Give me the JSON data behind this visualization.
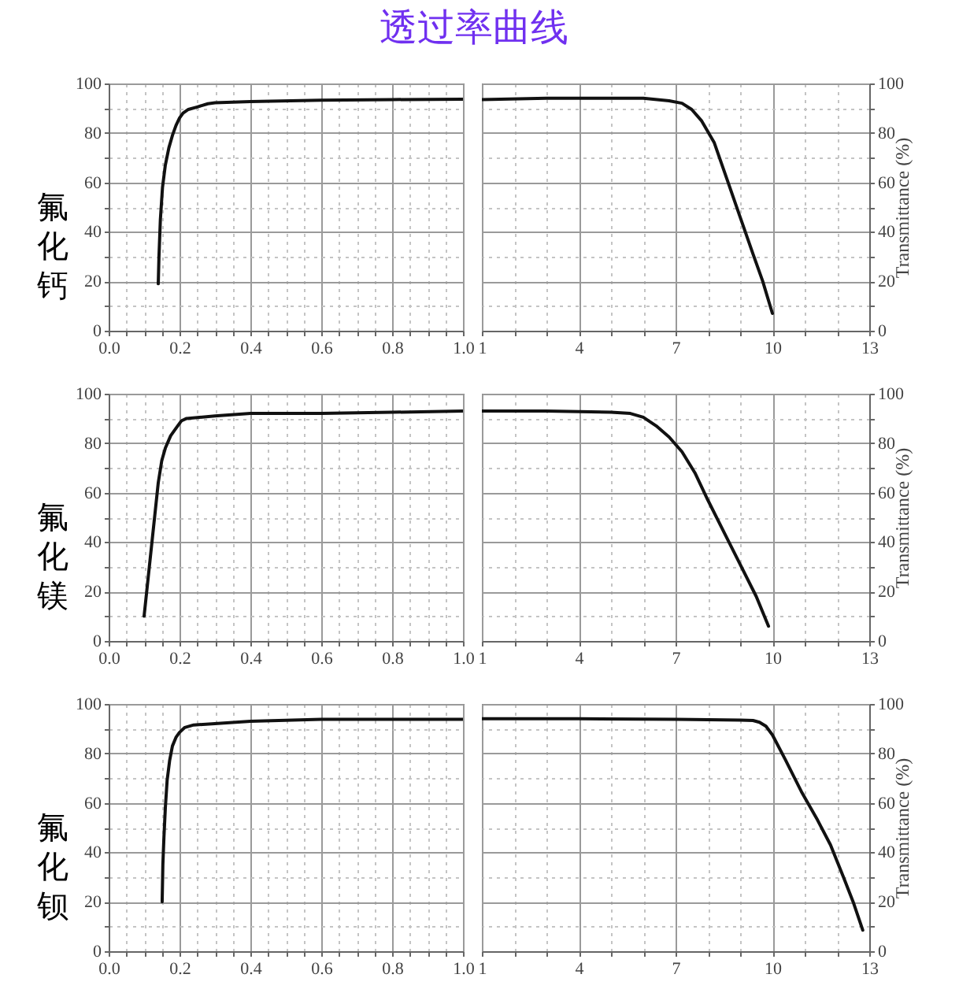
{
  "chart_data": [
    {
      "type": "line",
      "title": "透过率曲线",
      "ylabel": "氟化钙",
      "grid": true,
      "xlim": [
        0,
        1
      ],
      "xticks": [
        {
          "value": 0,
          "label": "0.0"
        },
        {
          "value": 0.05,
          "label": null
        },
        {
          "value": 0.1,
          "label": null
        },
        {
          "value": 0.15,
          "label": null
        },
        0.2,
        {
          "value": 0.25,
          "label": null
        },
        {
          "value": 0.3,
          "label": null
        },
        {
          "value": 0.35,
          "label": null
        },
        0.4,
        {
          "value": 0.45,
          "label": null
        },
        {
          "value": 0.5,
          "label": null
        },
        {
          "value": 0.55,
          "label": null
        },
        0.6,
        {
          "value": 0.65,
          "label": null
        },
        {
          "value": 0.7,
          "label": null
        },
        {
          "value": 0.75,
          "label": null
        },
        0.8,
        {
          "value": 0.85,
          "label": null
        },
        {
          "value": 0.9,
          "label": null
        },
        {
          "value": 0.95,
          "label": null
        },
        {
          "value": 1,
          "label": "1.0"
        }
      ],
      "ylim": [
        0,
        100
      ],
      "yticks": [
        0,
        {
          "value": 10,
          "label": null
        },
        20,
        {
          "value": 30,
          "label": null
        },
        40,
        {
          "value": 50,
          "label": null
        },
        60,
        {
          "value": 70,
          "label": null
        },
        80,
        {
          "value": 90,
          "label": null
        },
        100
      ],
      "series": [
        {
          "color": "#111111",
          "x": [
            0.14,
            0.142,
            0.146,
            0.152,
            0.16,
            0.17,
            0.18,
            0.19,
            0.2,
            0.21,
            0.225,
            0.25,
            0.28,
            0.3,
            0.4,
            0.6,
            0.8,
            1.0
          ],
          "values": [
            19,
            30,
            45,
            58,
            67,
            74,
            79,
            83,
            86,
            88,
            89.5,
            90.5,
            91.8,
            92.2,
            92.7,
            93.2,
            93.5,
            93.6
          ]
        }
      ]
    },
    {
      "type": "line",
      "y2label": "Transmittance (%)",
      "grid": true,
      "xlim": [
        1,
        13
      ],
      "xticks": [
        1,
        {
          "value": 2,
          "label": null
        },
        {
          "value": 3,
          "label": null
        },
        4,
        {
          "value": 5,
          "label": null
        },
        {
          "value": 6,
          "label": null
        },
        7,
        {
          "value": 8,
          "label": null
        },
        {
          "value": 9,
          "label": null
        },
        10,
        {
          "value": 11,
          "label": null
        },
        {
          "value": 12,
          "label": null
        },
        13
      ],
      "y2lim": [
        0,
        100
      ],
      "y2ticks": [
        0,
        {
          "value": 10,
          "label": null
        },
        20,
        {
          "value": 30,
          "label": null
        },
        40,
        {
          "value": 50,
          "label": null
        },
        60,
        {
          "value": 70,
          "label": null
        },
        80,
        {
          "value": 90,
          "label": null
        },
        100
      ],
      "series": [
        {
          "color": "#111111",
          "axis": "y2",
          "x": [
            1,
            3,
            5,
            6,
            6.8,
            7.2,
            7.5,
            7.8,
            8.2,
            8.6,
            9,
            9.4,
            9.7,
            10
          ],
          "values": [
            93.5,
            94,
            94,
            94,
            93,
            92,
            89.5,
            85,
            76,
            61,
            46,
            31,
            20,
            7
          ]
        }
      ]
    },
    {
      "type": "line",
      "ylabel": "氟化镁",
      "grid": true,
      "xlim": [
        0,
        1
      ],
      "xticks": [
        {
          "value": 0,
          "label": "0.0"
        },
        {
          "value": 0.05,
          "label": null
        },
        {
          "value": 0.1,
          "label": null
        },
        {
          "value": 0.15,
          "label": null
        },
        0.2,
        {
          "value": 0.25,
          "label": null
        },
        {
          "value": 0.3,
          "label": null
        },
        {
          "value": 0.35,
          "label": null
        },
        0.4,
        {
          "value": 0.45,
          "label": null
        },
        {
          "value": 0.5,
          "label": null
        },
        {
          "value": 0.55,
          "label": null
        },
        0.6,
        {
          "value": 0.65,
          "label": null
        },
        {
          "value": 0.7,
          "label": null
        },
        {
          "value": 0.75,
          "label": null
        },
        0.8,
        {
          "value": 0.85,
          "label": null
        },
        {
          "value": 0.9,
          "label": null
        },
        {
          "value": 0.95,
          "label": null
        },
        {
          "value": 1,
          "label": "1.0"
        }
      ],
      "ylim": [
        0,
        100
      ],
      "yticks": [
        0,
        {
          "value": 10,
          "label": null
        },
        20,
        {
          "value": 30,
          "label": null
        },
        40,
        {
          "value": 50,
          "label": null
        },
        60,
        {
          "value": 70,
          "label": null
        },
        80,
        {
          "value": 90,
          "label": null
        },
        100
      ],
      "series": [
        {
          "color": "#111111",
          "x": [
            0.1,
            0.12,
            0.14,
            0.15,
            0.16,
            0.175,
            0.19,
            0.205,
            0.22,
            0.3,
            0.4,
            0.6,
            0.8,
            1.0
          ],
          "values": [
            10,
            37,
            64,
            73,
            78,
            83,
            86,
            89,
            90,
            91,
            92,
            92,
            92.5,
            93
          ]
        }
      ]
    },
    {
      "type": "line",
      "y2label": "Transmittance (%)",
      "grid": true,
      "xlim": [
        1,
        13
      ],
      "xticks": [
        1,
        {
          "value": 2,
          "label": null
        },
        {
          "value": 3,
          "label": null
        },
        4,
        {
          "value": 5,
          "label": null
        },
        {
          "value": 6,
          "label": null
        },
        7,
        {
          "value": 8,
          "label": null
        },
        {
          "value": 9,
          "label": null
        },
        10,
        {
          "value": 11,
          "label": null
        },
        {
          "value": 12,
          "label": null
        },
        13
      ],
      "y2lim": [
        0,
        100
      ],
      "y2ticks": [
        0,
        {
          "value": 10,
          "label": null
        },
        20,
        {
          "value": 30,
          "label": null
        },
        40,
        {
          "value": 50,
          "label": null
        },
        60,
        {
          "value": 70,
          "label": null
        },
        80,
        {
          "value": 90,
          "label": null
        },
        100
      ],
      "series": [
        {
          "color": "#111111",
          "axis": "y2",
          "x": [
            1,
            3,
            5,
            5.6,
            6,
            6.4,
            6.8,
            7.2,
            7.6,
            8,
            8.5,
            9,
            9.5,
            9.88
          ],
          "values": [
            93,
            93,
            92.5,
            92,
            90.5,
            87,
            82.5,
            76.5,
            68,
            57,
            44,
            31,
            18,
            6
          ]
        }
      ]
    },
    {
      "type": "line",
      "ylabel": "氟化钡",
      "grid": true,
      "xlim": [
        0,
        1
      ],
      "xticks": [
        {
          "value": 0,
          "label": "0.0"
        },
        {
          "value": 0.05,
          "label": null
        },
        {
          "value": 0.1,
          "label": null
        },
        {
          "value": 0.15,
          "label": null
        },
        0.2,
        {
          "value": 0.25,
          "label": null
        },
        {
          "value": 0.3,
          "label": null
        },
        {
          "value": 0.35,
          "label": null
        },
        0.4,
        {
          "value": 0.45,
          "label": null
        },
        {
          "value": 0.5,
          "label": null
        },
        {
          "value": 0.55,
          "label": null
        },
        0.6,
        {
          "value": 0.65,
          "label": null
        },
        {
          "value": 0.7,
          "label": null
        },
        {
          "value": 0.75,
          "label": null
        },
        0.8,
        {
          "value": 0.85,
          "label": null
        },
        {
          "value": 0.9,
          "label": null
        },
        {
          "value": 0.95,
          "label": null
        },
        {
          "value": 1,
          "label": "1.0"
        }
      ],
      "ylim": [
        0,
        100
      ],
      "yticks": [
        0,
        {
          "value": 10,
          "label": null
        },
        20,
        {
          "value": 30,
          "label": null
        },
        40,
        {
          "value": 50,
          "label": null
        },
        60,
        {
          "value": 70,
          "label": null
        },
        80,
        {
          "value": 90,
          "label": null
        },
        100
      ],
      "series": [
        {
          "color": "#111111",
          "x": [
            0.151,
            0.153,
            0.156,
            0.16,
            0.165,
            0.172,
            0.18,
            0.19,
            0.2,
            0.215,
            0.24,
            0.3,
            0.4,
            0.6,
            0.8,
            1.0
          ],
          "values": [
            20,
            35,
            46,
            58,
            69,
            77,
            83,
            86.5,
            88.5,
            90.5,
            91.5,
            92,
            93,
            93.8,
            93.8,
            93.8
          ]
        }
      ]
    },
    {
      "type": "line",
      "y2label": "Transmittance (%)",
      "grid": true,
      "xlim": [
        1,
        13
      ],
      "xticks": [
        1,
        {
          "value": 2,
          "label": null
        },
        {
          "value": 3,
          "label": null
        },
        4,
        {
          "value": 5,
          "label": null
        },
        {
          "value": 6,
          "label": null
        },
        7,
        {
          "value": 8,
          "label": null
        },
        {
          "value": 9,
          "label": null
        },
        10,
        {
          "value": 11,
          "label": null
        },
        {
          "value": 12,
          "label": null
        },
        13
      ],
      "y2lim": [
        0,
        100
      ],
      "y2ticks": [
        0,
        {
          "value": 10,
          "label": null
        },
        20,
        {
          "value": 30,
          "label": null
        },
        40,
        {
          "value": 50,
          "label": null
        },
        60,
        {
          "value": 70,
          "label": null
        },
        80,
        {
          "value": 90,
          "label": null
        },
        100
      ],
      "series": [
        {
          "color": "#111111",
          "axis": "y2",
          "x": [
            1,
            4,
            7,
            9,
            9.4,
            9.6,
            9.8,
            10,
            10.4,
            10.9,
            11.4,
            11.8,
            12.2,
            12.5,
            12.8
          ],
          "values": [
            94,
            94,
            93.8,
            93.5,
            93.3,
            92.6,
            91,
            87.5,
            77.5,
            64.5,
            53,
            43,
            30,
            20,
            8.5
          ]
        }
      ]
    }
  ]
}
